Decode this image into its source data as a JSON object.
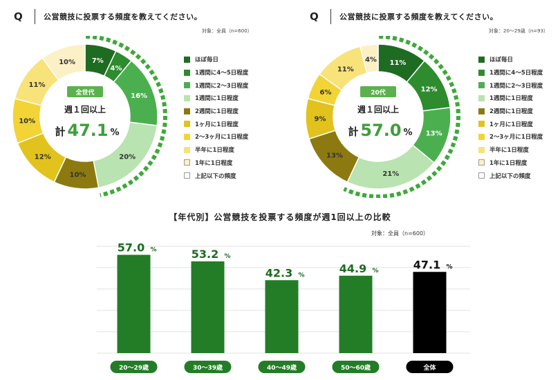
{
  "left_panel": {
    "q_mark": "Q",
    "question": "公営競技に投票する頻度を教えてください。",
    "basis": "対象：全員（n=600）",
    "center_badge": "全世代",
    "center_line": "週１回以上",
    "total_prefix": "計",
    "total_value": "47.1",
    "total_unit": "%"
  },
  "right_panel": {
    "q_mark": "Q",
    "question": "公営競技に投票する頻度を教えてください。",
    "basis": "対象：20〜29歳（n=93）",
    "center_badge": "20代",
    "center_line": "週１回以上",
    "total_prefix": "計",
    "total_value": "57.0",
    "total_unit": "%"
  },
  "bar_section": {
    "title": "【年代別】公営競技を投票する頻度が週1回以上の比較",
    "basis": "対象：全員（n=600）",
    "percent_suffix": "%"
  },
  "chart_data": [
    {
      "type": "pie",
      "categories": [
        "ほぼ毎日",
        "1週間に4〜5日程度",
        "1週間に2〜3日程度",
        "1週間に1日程度",
        "2週間に1日程度",
        "1ヶ月に1日程度",
        "2〜3ヶ月に1日程度",
        "半年に1日程度",
        "1年に1日程度",
        "上記以下の頻度"
      ],
      "values": [
        7,
        4,
        16,
        20,
        10,
        12,
        10,
        11,
        10,
        0
      ],
      "labels": [
        "7%",
        "4%",
        "16%",
        "20%",
        "10%",
        "12%",
        "10%",
        "11%",
        "10%",
        ""
      ],
      "colors": [
        "#1e6b22",
        "#2e8b2e",
        "#4caf4f",
        "#b9e3b0",
        "#8c7a10",
        "#e2c21c",
        "#f3d436",
        "#f8e27a",
        "#fcf1c6",
        "#ffffff"
      ],
      "legend": "right",
      "highlight_arc": "週１回以上"
    },
    {
      "type": "pie",
      "categories": [
        "ほぼ毎日",
        "1週間に4〜5日程度",
        "1週間に2〜3日程度",
        "1週間に1日程度",
        "2週間に1日程度",
        "1ヶ月に1日程度",
        "2〜3ヶ月に1日程度",
        "半年に1日程度",
        "1年に1日程度",
        "上記以下の頻度"
      ],
      "values": [
        11,
        12,
        13,
        21,
        13,
        9,
        6,
        11,
        4,
        0
      ],
      "labels": [
        "11%",
        "12%",
        "13%",
        "21%",
        "13%",
        "9%",
        "6%",
        "11%",
        "4%",
        ""
      ],
      "colors": [
        "#1e6b22",
        "#2e8b2e",
        "#4caf4f",
        "#b9e3b0",
        "#8c7a10",
        "#e2c21c",
        "#f3d436",
        "#f8e27a",
        "#fcf1c6",
        "#ffffff"
      ],
      "legend": "right",
      "highlight_arc": "週１回以上"
    },
    {
      "type": "bar",
      "title": "【年代別】公営競技を投票する頻度が週1回以上の比較",
      "categories": [
        "20〜29歳",
        "30〜39歳",
        "40〜49歳",
        "50〜60歳",
        "全体"
      ],
      "values": [
        57.0,
        53.2,
        42.3,
        44.9,
        47.1
      ],
      "value_labels": [
        "57.0",
        "53.2",
        "42.3",
        "44.9",
        "47.1"
      ],
      "colors": [
        "#237d27",
        "#237d27",
        "#237d27",
        "#237d27",
        "#000000"
      ],
      "ylim": [
        0,
        62
      ],
      "grid": true
    }
  ]
}
